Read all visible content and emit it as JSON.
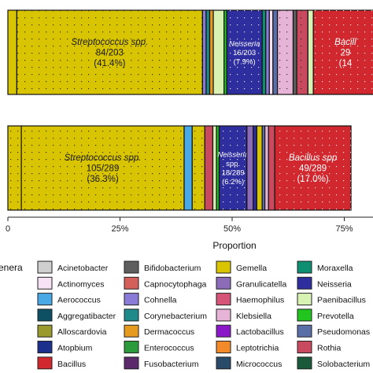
{
  "chart_data": {
    "type": "stacked-bar-horizontal",
    "xlabel": "Proportion",
    "xlim": [
      0,
      0.82
    ],
    "xticks": [
      {
        "value": 0,
        "label": "0"
      },
      {
        "value": 0.25,
        "label": "25%"
      },
      {
        "value": 0.5,
        "label": "50%"
      },
      {
        "value": 0.75,
        "label": "75%"
      }
    ],
    "legend": {
      "title": "enera",
      "position": "bottom",
      "entries": [
        {
          "name": "Acinetobacter",
          "color": "#cfcfcf"
        },
        {
          "name": "Actinomyces",
          "color": "#f7e1f4"
        },
        {
          "name": "Aerococcus",
          "color": "#48a9e6"
        },
        {
          "name": "Aggregatibacter",
          "color": "#0d4f63"
        },
        {
          "name": "Alloscardovia",
          "color": "#9a9a2e"
        },
        {
          "name": "Atopbium",
          "color": "#1d2f8c"
        },
        {
          "name": "Bacillus",
          "color": "#d0282e"
        },
        {
          "name": "Bifidobacterium",
          "color": "#5e5e5e"
        },
        {
          "name": "Capnocytophaga",
          "color": "#d4605a"
        },
        {
          "name": "Cohnella",
          "color": "#8a7cd6"
        },
        {
          "name": "Corynebacterium",
          "color": "#1e8a8a"
        },
        {
          "name": "Dermacoccus",
          "color": "#e69a1e"
        },
        {
          "name": "Enterococcus",
          "color": "#2a9a3a"
        },
        {
          "name": "Fusobacterium",
          "color": "#5a2a6a"
        },
        {
          "name": "Gemella",
          "color": "#d8c400"
        },
        {
          "name": "Granulicatella",
          "color": "#8c6bb8"
        },
        {
          "name": "Haemophilus",
          "color": "#d65478"
        },
        {
          "name": "Klebsiella",
          "color": "#e6b4d6"
        },
        {
          "name": "Lactobacillus",
          "color": "#8a18c8"
        },
        {
          "name": "Leptotrichia",
          "color": "#f28a2a"
        },
        {
          "name": "Micrococcus",
          "color": "#2a4a6a"
        },
        {
          "name": "Moraxella",
          "color": "#0f8f72"
        },
        {
          "name": "Neisseria",
          "color": "#2e2e9e"
        },
        {
          "name": "Paenibacillus",
          "color": "#d8f2b4"
        },
        {
          "name": "Prevotella",
          "color": "#22c51e"
        },
        {
          "name": "Pseudomonas",
          "color": "#5a6fa8"
        },
        {
          "name": "Rothia",
          "color": "#c94a5e"
        },
        {
          "name": "Solobacterium",
          "color": "#1a5a3a"
        }
      ]
    },
    "bars": [
      {
        "total": 203,
        "segments": [
          {
            "genus": "Gemella",
            "value": 0.02
          },
          {
            "genus": "Gemella",
            "value": 0.414,
            "label_italic": "Streptococcus spp.",
            "label_lines": [
              "84/203",
              "(41.4%)"
            ]
          },
          {
            "genus": "Cohnella",
            "value": 0.008
          },
          {
            "genus": "Corynebacterium",
            "value": 0.008
          },
          {
            "genus": "Dermacoccus",
            "value": 0.008
          },
          {
            "genus": "Paenibacillus",
            "value": 0.024
          },
          {
            "genus": "Prevotella",
            "value": 0.006
          },
          {
            "genus": "Neisseria",
            "value": 0.079,
            "label_italic": "Neisseria",
            "label_lines": [
              "16/203",
              "(7.9%)"
            ]
          },
          {
            "genus": "Moraxella",
            "value": 0.008
          },
          {
            "genus": "Cohnella",
            "value": 0.008
          },
          {
            "genus": "Actinomyces",
            "value": 0.008
          },
          {
            "genus": "Pseudomonas",
            "value": 0.01
          },
          {
            "genus": "Klebsiella",
            "value": 0.035
          },
          {
            "genus": "Bifidobacterium",
            "value": 0.008
          },
          {
            "genus": "Rothia",
            "value": 0.025
          },
          {
            "genus": "Paenibacillus",
            "value": 0.012
          },
          {
            "genus": "Bacillus",
            "value": 0.143,
            "label_italic": "Bacill",
            "label_lines": [
              "29",
              "(14"
            ]
          }
        ]
      },
      {
        "total": 289,
        "segments": [
          {
            "genus": "Gemella",
            "value": 0.03
          },
          {
            "genus": "Gemella",
            "value": 0.363,
            "label_italic": "Streptococcus spp.",
            "label_lines": [
              "105/289",
              "(36.3%)"
            ]
          },
          {
            "genus": "Aerococcus",
            "value": 0.018
          },
          {
            "genus": "Gemella",
            "value": 0.028
          },
          {
            "genus": "Rothia",
            "value": 0.018
          },
          {
            "genus": "Paenibacillus",
            "value": 0.008
          },
          {
            "genus": "Prevotella",
            "value": 0.006
          },
          {
            "genus": "Neisseria",
            "value": 0.062,
            "label_italic": "Neisseria",
            "label_lines": [
              "spp.",
              "18/289",
              "(6.2%)"
            ]
          },
          {
            "genus": "Granulicatella",
            "value": 0.014
          },
          {
            "genus": "Neisseria",
            "value": 0.008
          },
          {
            "genus": "Gemella",
            "value": 0.012
          },
          {
            "genus": "Pseudomonas",
            "value": 0.006
          },
          {
            "genus": "Klebsiella",
            "value": 0.008
          },
          {
            "genus": "Rothia",
            "value": 0.014
          },
          {
            "genus": "Bacillus",
            "value": 0.17,
            "label_italic": "Bacillus spp",
            "label_lines": [
              "49/289",
              "(17.0%)"
            ]
          }
        ]
      }
    ]
  }
}
